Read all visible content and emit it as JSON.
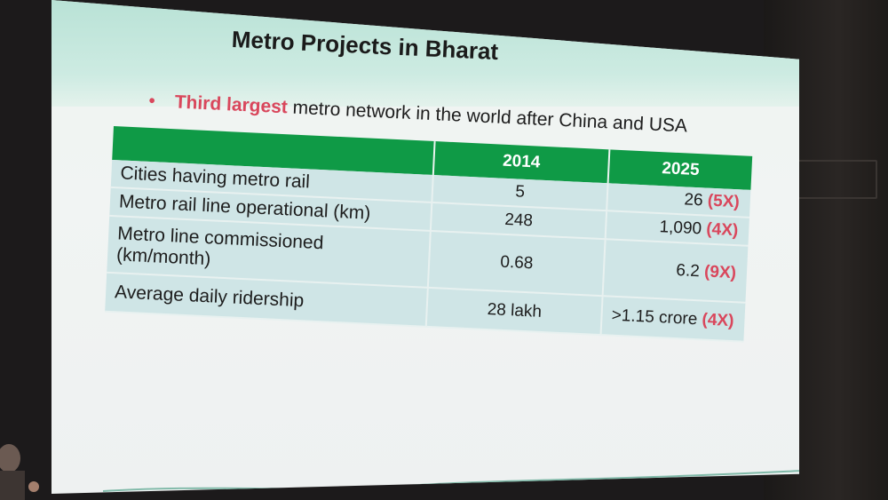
{
  "slide": {
    "title": "Metro Projects in Bharat",
    "bullet": {
      "highlight": "Third largest",
      "rest": " metro network in the world after China and USA"
    }
  },
  "table": {
    "headers": [
      "",
      "2014",
      "2025"
    ],
    "rows": [
      {
        "label": "Cities having metro rail",
        "v2014": "5",
        "v2025": "26",
        "mult": "(5X)"
      },
      {
        "label": "Metro rail line operational (km)",
        "v2014": "248",
        "v2025": "1,090",
        "mult": "(4X)"
      },
      {
        "label": "Metro line commissioned (km/month)",
        "v2014": "0.68",
        "v2025": "6.2",
        "mult": "(9X)"
      },
      {
        "label": "Average daily ridership",
        "v2014": "28 lakh",
        "v2025": ">1.15 crore",
        "mult": "(4X)"
      }
    ]
  },
  "colors": {
    "header_green": "#0f9a46",
    "accent_red": "#d9475c",
    "row_bg": "#cfe5e6",
    "title_band": "#b9e2d6"
  }
}
